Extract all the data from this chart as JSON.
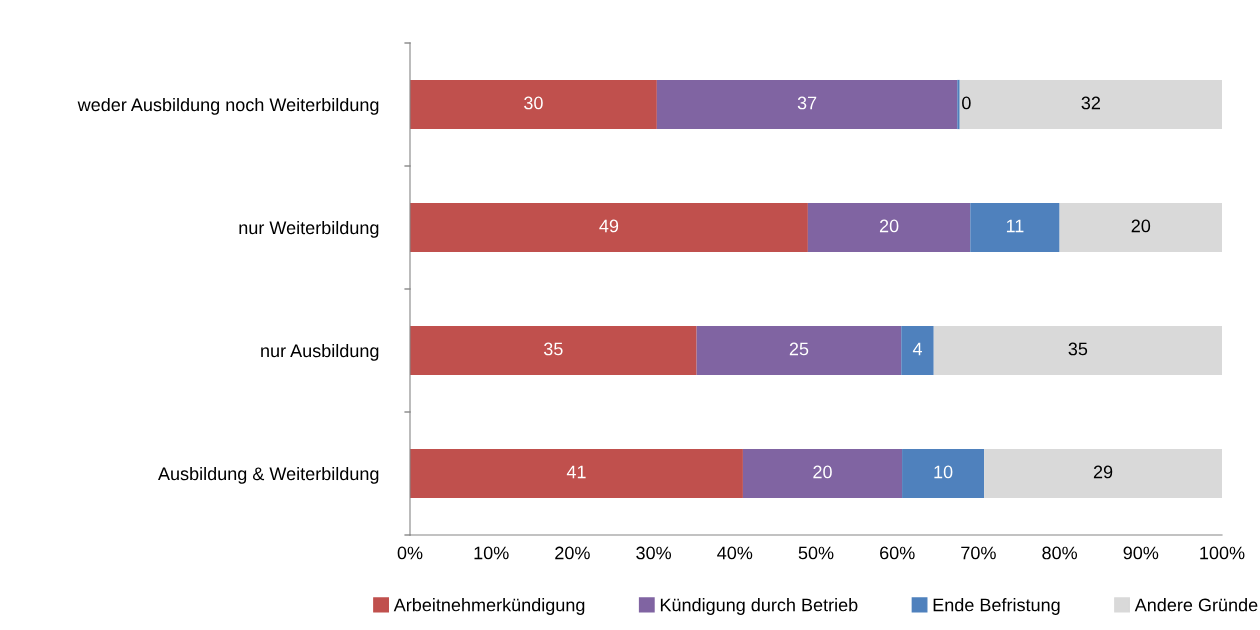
{
  "chart_data": {
    "type": "bar",
    "orientation": "horizontal",
    "stacked": true,
    "legend": "bottom",
    "grid": false,
    "categories": [
      "weder Ausbildung noch Weiterbildung",
      "nur Weiterbildung",
      "nur Ausbildung",
      "Ausbildung & Weiterbildung"
    ],
    "xlim": [
      0,
      100
    ],
    "xticks": [
      {
        "value": 0,
        "label": "0%"
      },
      {
        "value": 10,
        "label": "10%"
      },
      {
        "value": 20,
        "label": "20%"
      },
      {
        "value": 30,
        "label": "30%"
      },
      {
        "value": 40,
        "label": "40%"
      },
      {
        "value": 50,
        "label": "50%"
      },
      {
        "value": 60,
        "label": "60%"
      },
      {
        "value": 70,
        "label": "70%"
      },
      {
        "value": 80,
        "label": "80%"
      },
      {
        "value": 90,
        "label": "90%"
      },
      {
        "value": 100,
        "label": "100%"
      }
    ],
    "series": [
      {
        "name": "Arbeitnehmerkündigung",
        "color": "#c0504d",
        "values": [
          30.4,
          49,
          35.3,
          41
        ],
        "value_labels": [
          "30",
          "49",
          "35",
          "41"
        ]
      },
      {
        "name": "Kündigung durch Betrieb",
        "color": "#8064a2",
        "values": [
          37,
          20,
          25.2,
          19.6
        ],
        "value_labels": [
          "37",
          "20",
          "25",
          "20"
        ]
      },
      {
        "name": "Ende Befristung",
        "color": "#4f81bd",
        "values": [
          0.3,
          11,
          4,
          10.1
        ],
        "value_labels": [
          "0",
          "11",
          "4",
          "10"
        ]
      },
      {
        "name": "Andere Gründe",
        "color": "#d9d9d9",
        "values": [
          32.3,
          20,
          35.5,
          29.3
        ],
        "value_labels": [
          "32",
          "20",
          "35",
          "29"
        ]
      }
    ]
  }
}
